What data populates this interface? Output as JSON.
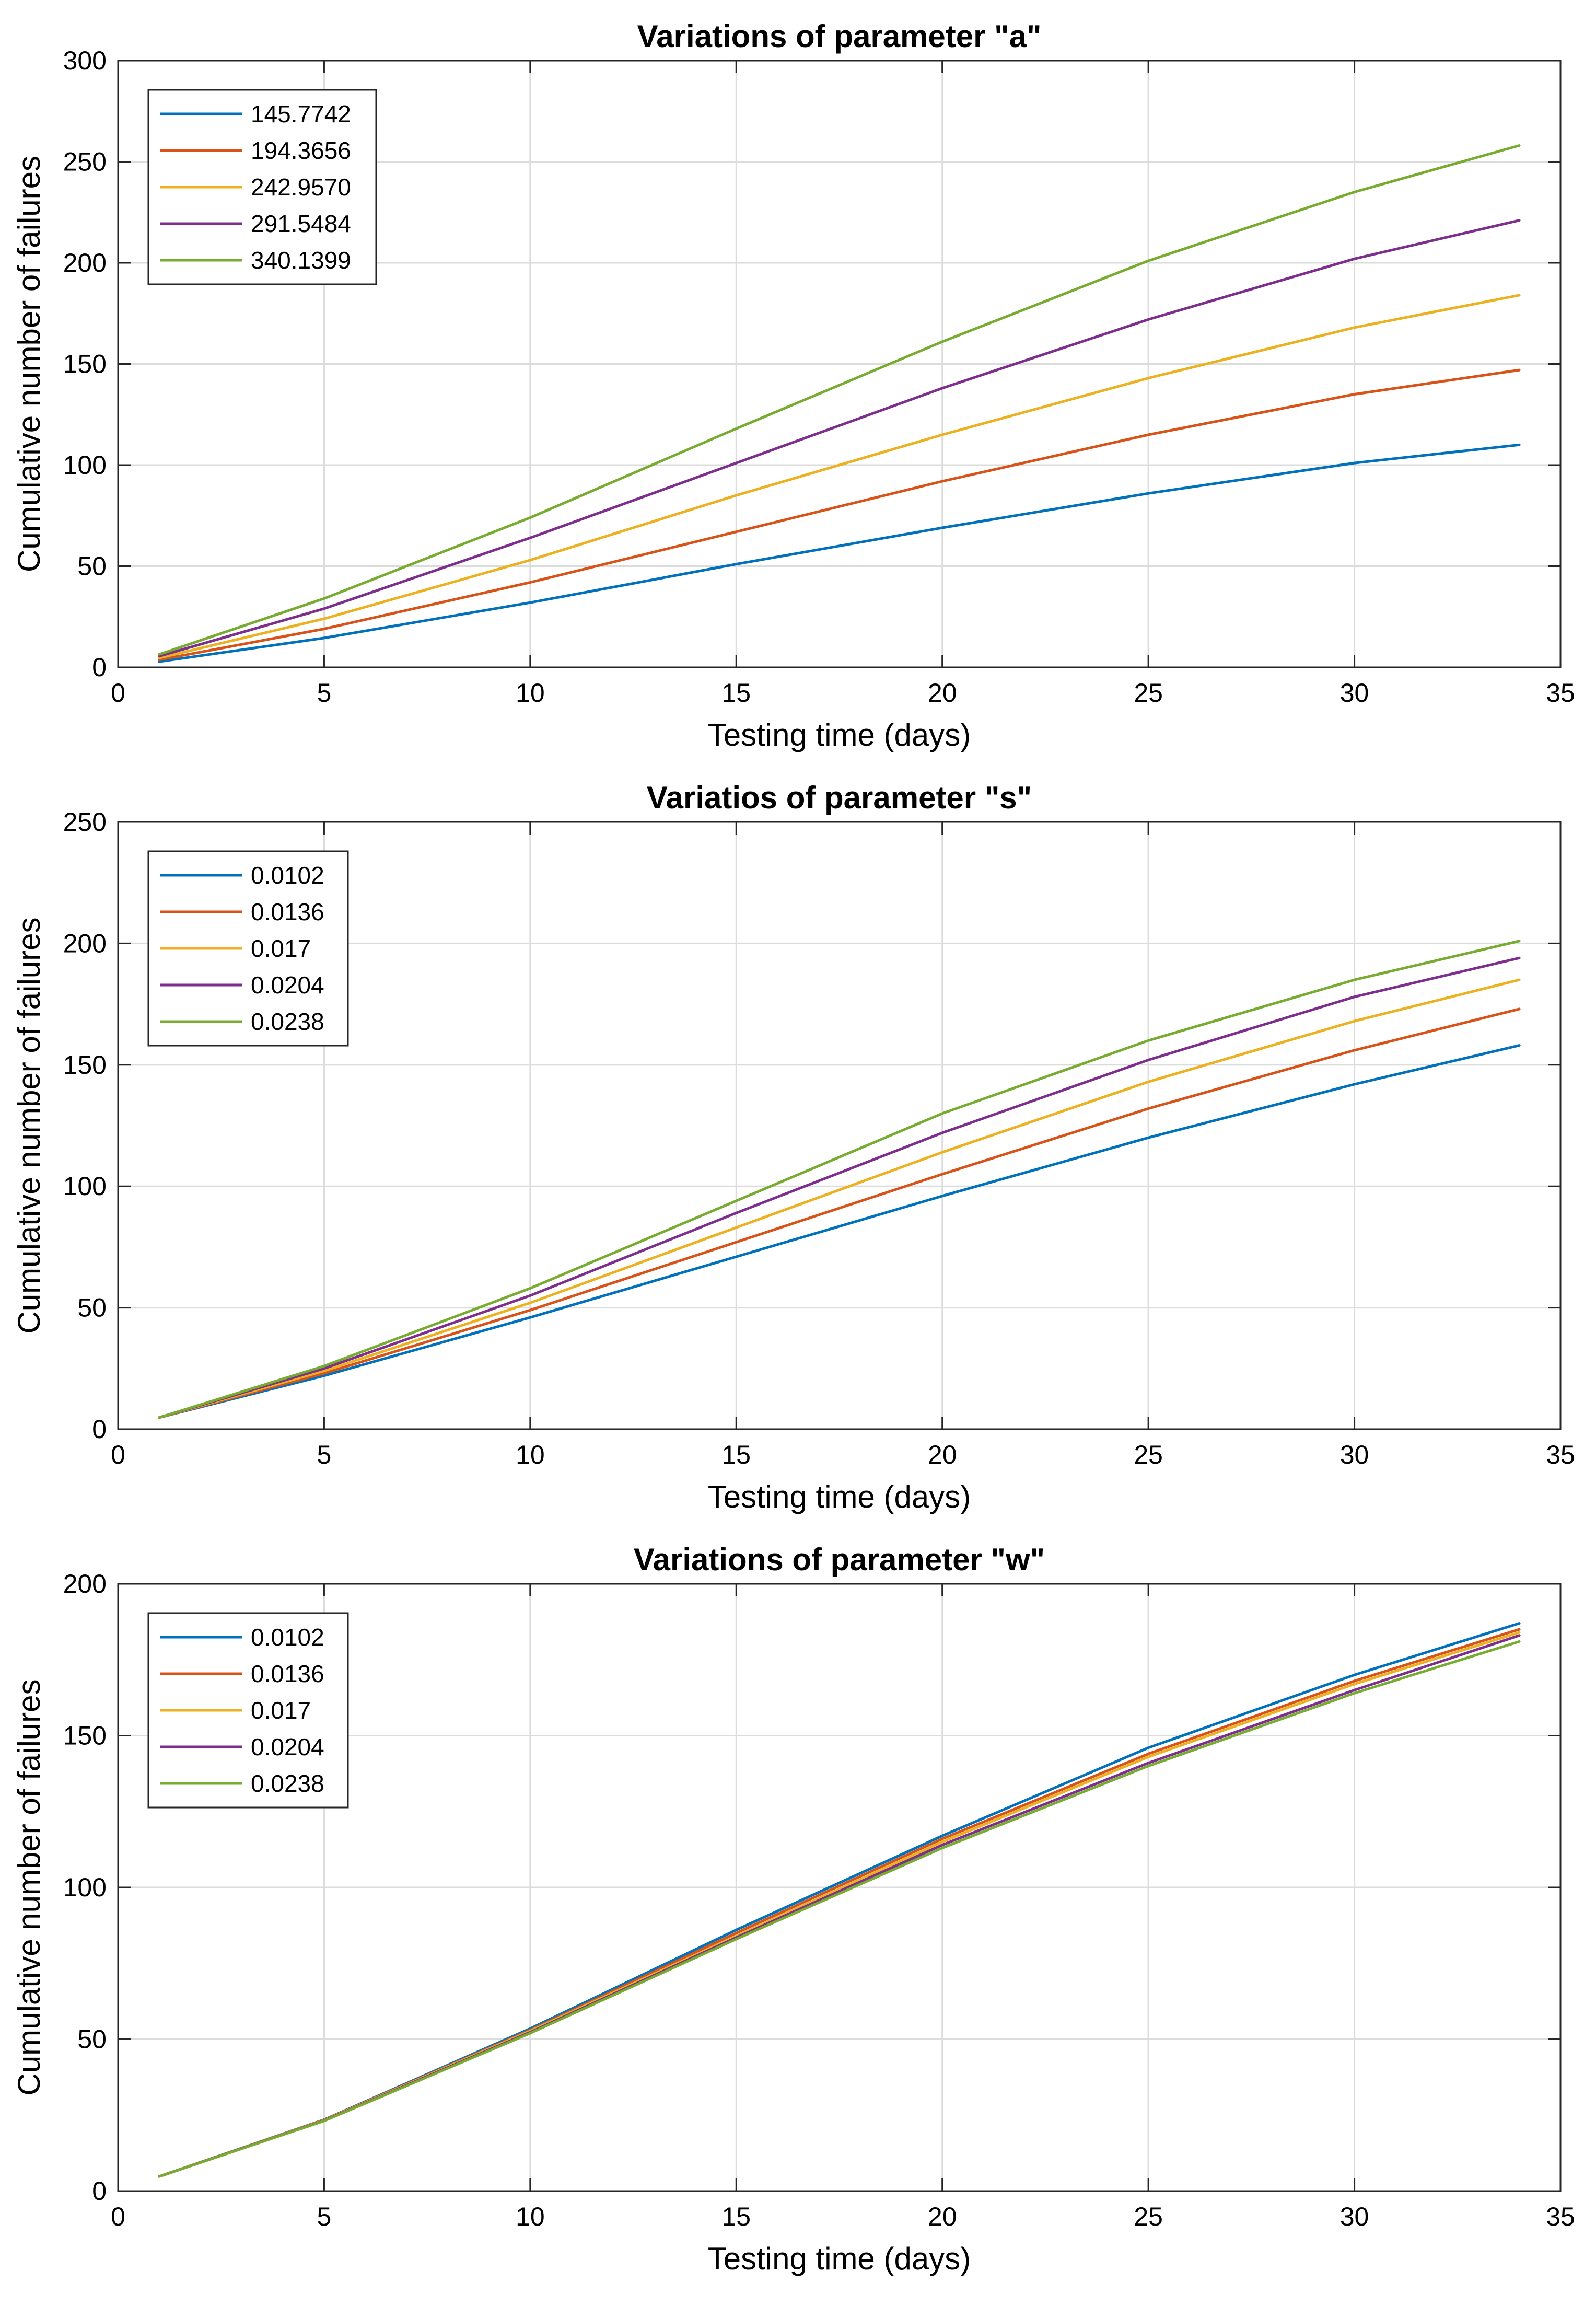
{
  "colors": {
    "s1": "#0072BD",
    "s2": "#D95319",
    "s3": "#EDB120",
    "s4": "#7E2F8E",
    "s5": "#77AC30",
    "grid": "#dcdcdc",
    "axis": "#262626"
  },
  "chart_data": [
    {
      "type": "line",
      "title": "Variations of parameter \"a\"",
      "xlabel": "Testing time (days)",
      "ylabel": "Cumulative number of failures",
      "xlim": [
        0,
        35
      ],
      "ylim": [
        0,
        300
      ],
      "xticks": [
        0,
        5,
        10,
        15,
        20,
        25,
        30,
        35
      ],
      "yticks": [
        0,
        50,
        100,
        150,
        200,
        250,
        300
      ],
      "grid": true,
      "legend_position": "top-left",
      "x": [
        1,
        5,
        10,
        15,
        20,
        25,
        30,
        34
      ],
      "series": [
        {
          "name": "145.7742",
          "color": "#0072BD",
          "values": [
            2.8,
            14.5,
            32,
            51,
            69,
            86,
            101,
            110
          ]
        },
        {
          "name": "194.3656",
          "color": "#D95319",
          "values": [
            3.7,
            19,
            42,
            67,
            92,
            115,
            135,
            147
          ]
        },
        {
          "name": "242.9570",
          "color": "#EDB120",
          "values": [
            4.6,
            24,
            53,
            85,
            115,
            143,
            168,
            184
          ]
        },
        {
          "name": "291.5484",
          "color": "#7E2F8E",
          "values": [
            5.5,
            29,
            64,
            101,
            138,
            172,
            202,
            221
          ]
        },
        {
          "name": "340.1399",
          "color": "#77AC30",
          "values": [
            6.4,
            34,
            74,
            118,
            161,
            201,
            235,
            258
          ]
        }
      ]
    },
    {
      "type": "line",
      "title": "Variatios of parameter \"s\"",
      "xlabel": "Testing time (days)",
      "ylabel": "Cumulative number of failures",
      "xlim": [
        0,
        35
      ],
      "ylim": [
        0,
        250
      ],
      "xticks": [
        0,
        5,
        10,
        15,
        20,
        25,
        30,
        35
      ],
      "yticks": [
        0,
        50,
        100,
        150,
        200,
        250
      ],
      "grid": true,
      "legend_position": "top-left",
      "x": [
        1,
        5,
        10,
        15,
        20,
        25,
        30,
        34
      ],
      "series": [
        {
          "name": "0.0102",
          "color": "#0072BD",
          "values": [
            4.8,
            22,
            46,
            71,
            96,
            120,
            142,
            158
          ]
        },
        {
          "name": "0.0136",
          "color": "#D95319",
          "values": [
            4.8,
            23,
            49,
            77,
            105,
            132,
            156,
            173
          ]
        },
        {
          "name": "0.017",
          "color": "#EDB120",
          "values": [
            4.8,
            24,
            52,
            83,
            114,
            143,
            168,
            185
          ]
        },
        {
          "name": "0.0204",
          "color": "#7E2F8E",
          "values": [
            4.8,
            25,
            55,
            89,
            122,
            152,
            178,
            194
          ]
        },
        {
          "name": "0.0238",
          "color": "#77AC30",
          "values": [
            4.8,
            26,
            58,
            94,
            130,
            160,
            185,
            201
          ]
        }
      ]
    },
    {
      "type": "line",
      "title": "Variations of parameter \"w\"",
      "xlabel": "Testing time (days)",
      "ylabel": "Cumulative number of failures",
      "xlim": [
        0,
        35
      ],
      "ylim": [
        0,
        200
      ],
      "xticks": [
        0,
        5,
        10,
        15,
        20,
        25,
        30,
        35
      ],
      "yticks": [
        0,
        50,
        100,
        150,
        200
      ],
      "grid": true,
      "legend_position": "top-left",
      "x": [
        1,
        5,
        10,
        15,
        20,
        25,
        30,
        34
      ],
      "series": [
        {
          "name": "0.0102",
          "color": "#0072BD",
          "values": [
            4.8,
            23.5,
            53.5,
            86,
            117,
            146,
            170,
            187
          ]
        },
        {
          "name": "0.0136",
          "color": "#D95319",
          "values": [
            4.8,
            23.4,
            53,
            85,
            116,
            144,
            168,
            185
          ]
        },
        {
          "name": "0.017",
          "color": "#EDB120",
          "values": [
            4.8,
            23.3,
            52.7,
            84,
            115,
            143,
            167,
            184
          ]
        },
        {
          "name": "0.0204",
          "color": "#7E2F8E",
          "values": [
            4.8,
            23.2,
            52.3,
            83.5,
            114,
            141,
            165,
            183
          ]
        },
        {
          "name": "0.0238",
          "color": "#77AC30",
          "values": [
            4.8,
            23.1,
            52,
            83,
            113,
            140,
            164,
            181
          ]
        }
      ]
    }
  ]
}
